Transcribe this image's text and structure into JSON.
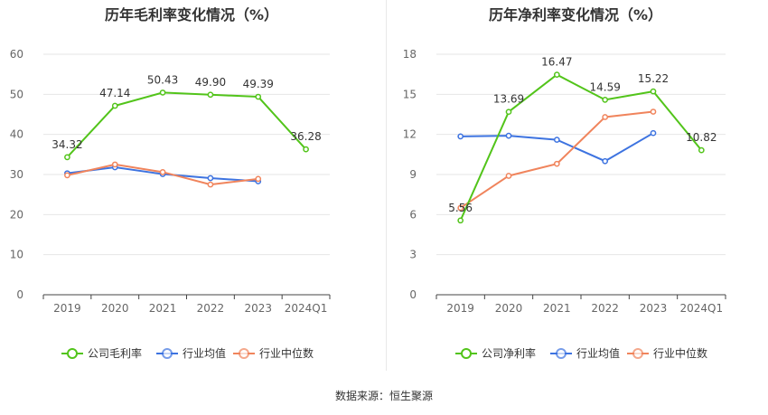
{
  "chart_data": [
    {
      "type": "line",
      "title": "历年毛利率变化情况（%）",
      "categories": [
        "2019",
        "2020",
        "2021",
        "2022",
        "2023",
        "2024Q1"
      ],
      "ylim": [
        0,
        60
      ],
      "yticks": [
        "0",
        "10",
        "20",
        "30",
        "40",
        "50",
        "60"
      ],
      "series": [
        {
          "name": "公司毛利率",
          "color": "#52c41a",
          "values": [
            34.32,
            47.14,
            50.43,
            49.9,
            49.39,
            36.28
          ],
          "labels": [
            "34.32",
            "47.14",
            "50.43",
            "49.90",
            "49.39",
            "36.28"
          ]
        },
        {
          "name": "行业均值",
          "color": "#3d73e0",
          "values": [
            30.3,
            31.8,
            30.1,
            29.1,
            28.3,
            null
          ]
        },
        {
          "name": "行业中位数",
          "color": "#f0845c",
          "values": [
            29.8,
            32.5,
            30.6,
            27.5,
            28.9,
            null
          ]
        }
      ],
      "legend": [
        "公司毛利率",
        "行业均值",
        "行业中位数"
      ]
    },
    {
      "type": "line",
      "title": "历年净利率变化情况（%）",
      "categories": [
        "2019",
        "2020",
        "2021",
        "2022",
        "2023",
        "2024Q1"
      ],
      "ylim": [
        0,
        18
      ],
      "yticks": [
        "0",
        "3",
        "6",
        "9",
        "12",
        "15",
        "18"
      ],
      "series": [
        {
          "name": "公司净利率",
          "color": "#52c41a",
          "values": [
            5.56,
            13.69,
            16.47,
            14.59,
            15.22,
            10.82
          ],
          "labels": [
            "5.56",
            "13.69",
            "16.47",
            "14.59",
            "15.22",
            "10.82"
          ]
        },
        {
          "name": "行业均值",
          "color": "#3d73e0",
          "values": [
            11.85,
            11.9,
            11.6,
            10.0,
            12.1,
            null
          ]
        },
        {
          "name": "行业中位数",
          "color": "#f0845c",
          "values": [
            6.5,
            8.9,
            9.8,
            13.3,
            13.7,
            null
          ]
        }
      ],
      "legend": [
        "公司净利率",
        "行业均值",
        "行业中位数"
      ]
    }
  ],
  "footer": {
    "source": "数据来源：恒生聚源"
  }
}
